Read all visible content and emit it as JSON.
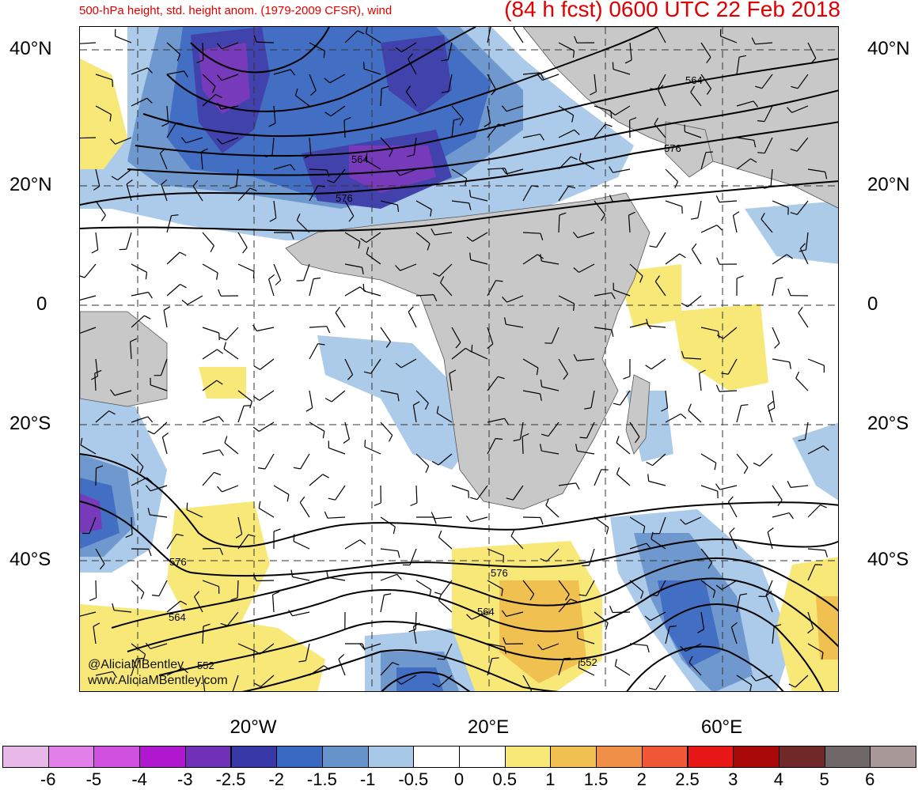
{
  "header": {
    "title_left": "500-hPa height, std. height anom. (1979-2009 CFSR), wind",
    "title_right": "(84 h fcst) 0600 UTC 22 Feb 2018"
  },
  "map": {
    "lat_labels_left": [
      "40°N",
      "20°N",
      "0",
      "20°S",
      "40°S"
    ],
    "lat_labels_right": [
      "40°N",
      "20°N",
      "0",
      "20°S",
      "40°S"
    ],
    "lon_labels": [
      "20°W",
      "20°E",
      "60°E"
    ],
    "contour_labels": [
      "564",
      "576",
      "564",
      "576",
      "576",
      "564",
      "576",
      "564",
      "552",
      "552"
    ],
    "credit_line1": "@AliciaMBentley",
    "credit_line2": "www.AliciaMBentley.com",
    "colors": {
      "land": "#c8c8c8",
      "ocean": "#ffffff",
      "contour": "#000000",
      "grid": "#333333"
    }
  },
  "colorbar": {
    "tick_labels": [
      "-6",
      "-5",
      "-4",
      "-3",
      "-2.5",
      "-2",
      "-1.5",
      "-1",
      "-0.5",
      "0",
      "0.5",
      "1",
      "1.5",
      "2",
      "2.5",
      "3",
      "4",
      "5",
      "6"
    ],
    "colors": [
      "#e8b8e8",
      "#e080e8",
      "#d050e0",
      "#b018d0",
      "#7030b8",
      "#3838a8",
      "#3868c0",
      "#6894cc",
      "#a8c8e8",
      "#ffffff",
      "#ffffff",
      "#f8e878",
      "#f0c050",
      "#f09048",
      "#f05838",
      "#e81818",
      "#a80808",
      "#702828",
      "#706868",
      "#a89898"
    ]
  }
}
